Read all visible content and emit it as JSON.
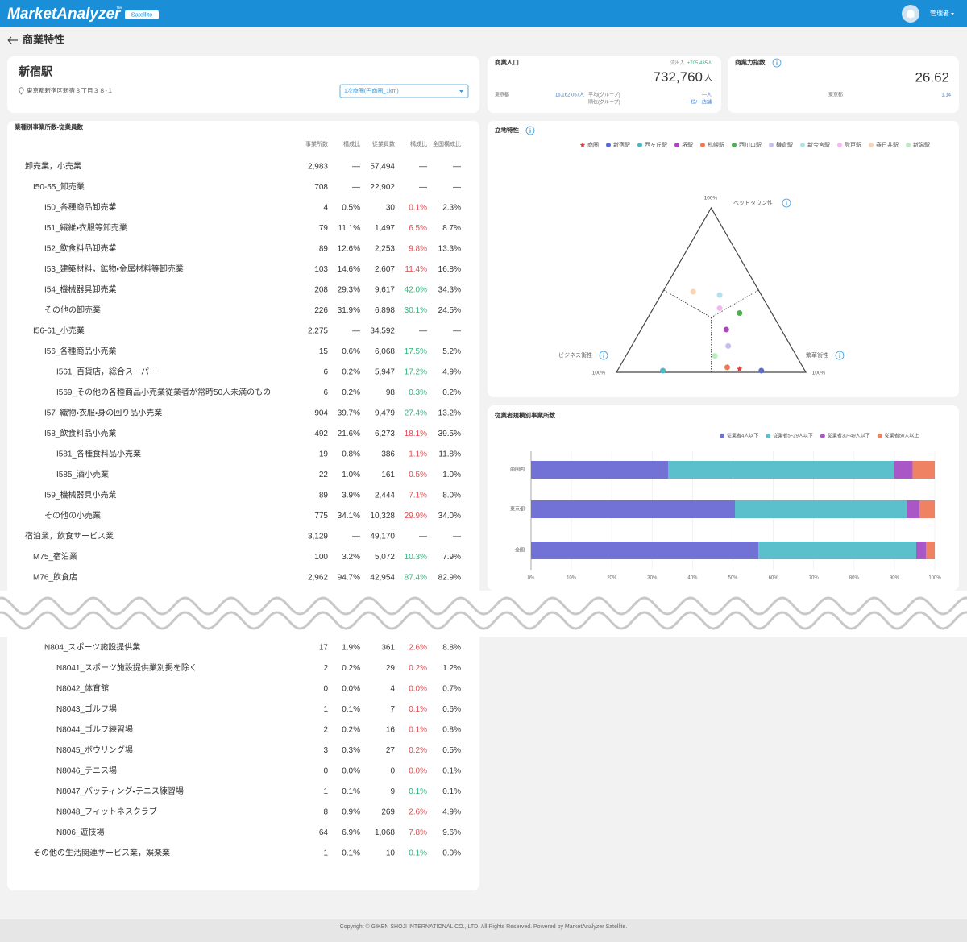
{
  "header": {
    "logo": "MarketAnalyzer",
    "trademark": "™",
    "badge": "Satellite",
    "user": "管理者"
  },
  "page_title": "商業特性",
  "location": {
    "name": "新宿駅",
    "address": "東京都新宿区新宿３丁目３８-１",
    "area_select": "1次商圏(円商圏_1km)"
  },
  "population": {
    "title": "商業人口",
    "flow_label": "流出入",
    "flow_value": "+705,435人",
    "value": "732,760",
    "unit": "人",
    "compare_label": "東京都",
    "compare_value": "16,162,057人",
    "group": [
      {
        "label": "平均(グループ)",
        "value": "—人"
      },
      {
        "label": "順位(グループ)",
        "value": "—位/—店舗"
      }
    ]
  },
  "index": {
    "title": "商業力指数",
    "value": "26.62",
    "compare_label": "東京都",
    "compare_value": "1.14"
  },
  "table": {
    "title": "業種別事業所数・従業員数",
    "columns": [
      "事業所数",
      "構成比",
      "従業員数",
      "構成比",
      "全国構成比"
    ],
    "parts": [
      [
        {
          "label": "卸売業，小売業",
          "level": 0,
          "cells": [
            "2,983",
            "—",
            "57,494",
            "—",
            "—"
          ]
        },
        {
          "label": "I50-55_卸売業",
          "level": 1,
          "cells": [
            "708",
            "—",
            "22,902",
            "—",
            "—"
          ]
        },
        {
          "label": "I50_各種商品卸売業",
          "level": 2,
          "cells": [
            "4",
            "0.5%",
            "30",
            "0.1%",
            "2.3%"
          ]
        },
        {
          "label": "I51_繊維・衣服等卸売業",
          "level": 2,
          "cells": [
            "79",
            "11.1%",
            "1,497",
            "6.5%",
            "8.7%"
          ]
        },
        {
          "label": "I52_飲食料品卸売業",
          "level": 2,
          "cells": [
            "89",
            "12.6%",
            "2,253",
            "9.8%",
            "13.3%"
          ]
        },
        {
          "label": "I53_建築材料，鉱物・金属材料等卸売業",
          "level": 2,
          "cells": [
            "103",
            "14.6%",
            "2,607",
            "11.4%",
            "16.8%"
          ]
        },
        {
          "label": "I54_機械器具卸売業",
          "level": 2,
          "cells": [
            "208",
            "29.3%",
            "9,617",
            "42.0%",
            "34.3%"
          ]
        },
        {
          "label": "その他の卸売業",
          "level": 2,
          "cells": [
            "226",
            "31.9%",
            "6,898",
            "30.1%",
            "24.5%"
          ]
        },
        {
          "label": "I56-61_小売業",
          "level": 1,
          "cells": [
            "2,275",
            "—",
            "34,592",
            "—",
            "—"
          ]
        },
        {
          "label": "I56_各種商品小売業",
          "level": 2,
          "cells": [
            "15",
            "0.6%",
            "6,068",
            "17.5%",
            "5.2%"
          ]
        },
        {
          "label": "I561_百貨店，総合スーパー",
          "level": 3,
          "cells": [
            "6",
            "0.2%",
            "5,947",
            "17.2%",
            "4.9%"
          ]
        },
        {
          "label": "I569_その他の各種商品小売業従業者が常時50人未満のもの",
          "level": 3,
          "cells": [
            "6",
            "0.2%",
            "98",
            "0.3%",
            "0.2%"
          ]
        },
        {
          "label": "I57_織物・衣服・身の回り品小売業",
          "level": 2,
          "cells": [
            "904",
            "39.7%",
            "9,479",
            "27.4%",
            "13.2%"
          ]
        },
        {
          "label": "I58_飲食料品小売業",
          "level": 2,
          "cells": [
            "492",
            "21.6%",
            "6,273",
            "18.1%",
            "39.5%"
          ]
        },
        {
          "label": "I581_各種食料品小売業",
          "level": 3,
          "cells": [
            "19",
            "0.8%",
            "386",
            "1.1%",
            "11.8%"
          ]
        },
        {
          "label": "I585_酒小売業",
          "level": 3,
          "cells": [
            "22",
            "1.0%",
            "161",
            "0.5%",
            "1.0%"
          ]
        },
        {
          "label": "I59_機械器具小売業",
          "level": 2,
          "cells": [
            "89",
            "3.9%",
            "2,444",
            "7.1%",
            "8.0%"
          ]
        },
        {
          "label": "その他の小売業",
          "level": 2,
          "cells": [
            "775",
            "34.1%",
            "10,328",
            "29.9%",
            "34.0%"
          ]
        },
        {
          "label": "宿泊業，飲食サービス業",
          "level": 0,
          "cells": [
            "3,129",
            "—",
            "49,170",
            "—",
            "—"
          ]
        },
        {
          "label": "M75_宿泊業",
          "level": 1,
          "cells": [
            "100",
            "3.2%",
            "5,072",
            "10.3%",
            "7.9%"
          ]
        },
        {
          "label": "M76_飲食店",
          "level": 1,
          "cells": [
            "2,962",
            "94.7%",
            "42,954",
            "87.4%",
            "82.9%"
          ]
        }
      ],
      [
        {
          "label": "N804_スポーツ施設提供業",
          "level": 2,
          "cells": [
            "17",
            "1.9%",
            "361",
            "2.6%",
            "8.8%"
          ]
        },
        {
          "label": "N8041_スポーツ施設提供業別掲を除く",
          "level": 3,
          "cells": [
            "2",
            "0.2%",
            "29",
            "0.2%",
            "1.2%"
          ]
        },
        {
          "label": "N8042_体育館",
          "level": 3,
          "cells": [
            "0",
            "0.0%",
            "4",
            "0.0%",
            "0.7%"
          ]
        },
        {
          "label": "N8043_ゴルフ場",
          "level": 3,
          "cells": [
            "1",
            "0.1%",
            "7",
            "0.1%",
            "0.6%"
          ]
        },
        {
          "label": "N8044_ゴルフ練習場",
          "level": 3,
          "cells": [
            "2",
            "0.2%",
            "16",
            "0.1%",
            "0.8%"
          ]
        },
        {
          "label": "N8045_ボウリング場",
          "level": 3,
          "cells": [
            "3",
            "0.3%",
            "27",
            "0.2%",
            "0.5%"
          ]
        },
        {
          "label": "N8046_テニス場",
          "level": 3,
          "cells": [
            "0",
            "0.0%",
            "0",
            "0.0%",
            "0.1%"
          ]
        },
        {
          "label": "N8047_バッティング・テニス練習場",
          "level": 3,
          "cells": [
            "1",
            "0.1%",
            "9",
            "0.1%",
            "0.1%"
          ]
        },
        {
          "label": "N8048_フィットネスクラブ",
          "level": 3,
          "cells": [
            "8",
            "0.9%",
            "269",
            "2.6%",
            "4.9%"
          ]
        },
        {
          "label": "N806_遊技場",
          "level": 3,
          "cells": [
            "64",
            "6.9%",
            "1,068",
            "7.8%",
            "9.6%"
          ]
        },
        {
          "label": "その他の生活関連サービス業，娯楽業",
          "level": 1,
          "cells": [
            "1",
            "0.1%",
            "10",
            "0.1%",
            "0.0%"
          ]
        }
      ]
    ]
  },
  "chart_data": [
    {
      "type": "ternary",
      "title": "立地特性",
      "axes": [
        {
          "label": "ベッドタウン性",
          "max": {
            "value": 100,
            "label": "100%"
          }
        },
        {
          "label": "ビジネス街性",
          "max": {
            "value": 100,
            "label": "100%"
          }
        },
        {
          "label": "繁華街性",
          "max": {
            "value": 100,
            "label": "100%"
          }
        }
      ],
      "series": [
        {
          "name": "商圏",
          "color": "#e53935",
          "marker": "star",
          "values": [
            2,
            34,
            64
          ]
        },
        {
          "name": "新宿駅",
          "color": "#5b6bd0",
          "marker": "circle",
          "values": [
            1,
            23,
            76
          ]
        },
        {
          "name": "西ヶ丘駅",
          "color": "#4db6c4",
          "marker": "circle",
          "values": [
            1,
            75,
            24
          ]
        },
        {
          "name": "堺駅",
          "color": "#ab47bc",
          "marker": "circle",
          "values": [
            26,
            29,
            45
          ]
        },
        {
          "name": "札幌駅",
          "color": "#ef7a55",
          "marker": "circle",
          "values": [
            3,
            40,
            57
          ]
        },
        {
          "name": "西川口駅",
          "color": "#4caf50",
          "marker": "circle",
          "values": [
            36,
            17,
            47
          ]
        },
        {
          "name": "鎌倉駅",
          "color": "#c5c0ea",
          "marker": "circle",
          "values": [
            16,
            33,
            51
          ]
        },
        {
          "name": "新今宮駅",
          "color": "#b3e3ea",
          "marker": "circle",
          "values": [
            47,
            22,
            31
          ]
        },
        {
          "name": "登戸駅",
          "color": "#f3b8ef",
          "marker": "circle",
          "values": [
            39,
            26,
            35
          ]
        },
        {
          "name": "春日井駅",
          "color": "#fcd2b0",
          "marker": "circle",
          "values": [
            49,
            35,
            16
          ]
        },
        {
          "name": "新潟駅",
          "color": "#b9ecc0",
          "marker": "circle",
          "values": [
            10,
            43,
            47
          ]
        }
      ]
    },
    {
      "type": "bar",
      "orientation": "horizontal",
      "stacked": true,
      "title": "従業者規模別事業所数",
      "categories": [
        "商圏内",
        "東京都",
        "全国"
      ],
      "series": [
        {
          "name": "従業者4人以下",
          "color": "#7171d6",
          "values": [
            34,
            50.5,
            56.3
          ]
        },
        {
          "name": "従業者5~29人以下",
          "color": "#5cbfcc",
          "values": [
            56,
            42.5,
            39.1
          ]
        },
        {
          "name": "従業者30~49人以下",
          "color": "#a957c7",
          "values": [
            4.5,
            3.2,
            2.4
          ]
        },
        {
          "name": "従業者50人以上",
          "color": "#ee8262",
          "values": [
            5.5,
            3.8,
            2.2
          ]
        }
      ],
      "xlim": [
        0,
        100
      ],
      "xticks": [
        {
          "value": 0,
          "label": "0%"
        },
        {
          "value": 10,
          "label": "10%"
        },
        {
          "value": 20,
          "label": "20%"
        },
        {
          "value": 30,
          "label": "30%"
        },
        {
          "value": 40,
          "label": "40%"
        },
        {
          "value": 50,
          "label": "50%"
        },
        {
          "value": 60,
          "label": "60%"
        },
        {
          "value": 70,
          "label": "70%"
        },
        {
          "value": 80,
          "label": "80%"
        },
        {
          "value": 90,
          "label": "90%"
        },
        {
          "value": 100,
          "label": "100%"
        }
      ],
      "grid": true
    }
  ],
  "footer": "Copyright © GIKEN SHOJI INTERNATIONAL CO., LTD. All Rights Reserved. Powered by MarketAnalyzer Satellite."
}
